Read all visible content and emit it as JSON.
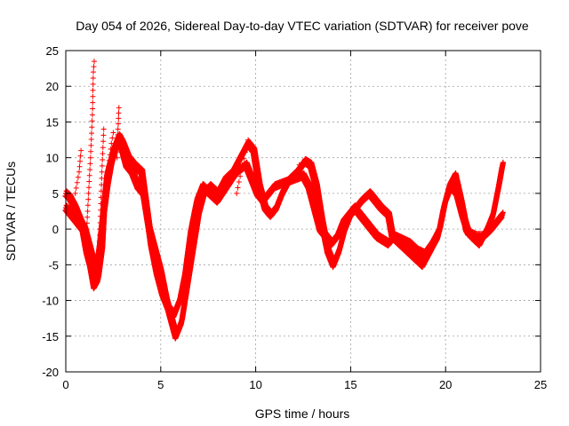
{
  "chart_data": {
    "type": "scatter",
    "title": "Day 054 of 2026, Sidereal Day-to-day VTEC variation (SDTVAR) for receiver pove",
    "xlabel": "GPS time / hours",
    "ylabel": "SDTVAR / TECUs",
    "xlim": [
      0,
      25
    ],
    "ylim": [
      -20,
      25
    ],
    "xticks": [
      0,
      5,
      10,
      15,
      20,
      25
    ],
    "yticks": [
      -20,
      -15,
      -10,
      -5,
      0,
      5,
      10,
      15,
      20,
      25
    ],
    "grid": true,
    "marker": "+",
    "series": [
      {
        "name": "SDTVAR",
        "color": "#ff0000",
        "tracks": [
          [
            [
              0,
              3
            ],
            [
              0.3,
              2
            ],
            [
              0.6,
              1
            ],
            [
              0.9,
              0
            ],
            [
              1.1,
              -3
            ],
            [
              1.3,
              -5
            ],
            [
              1.5,
              -8
            ],
            [
              1.7,
              -7
            ],
            [
              1.9,
              -3
            ],
            [
              2.0,
              2
            ],
            [
              2.2,
              6
            ],
            [
              2.4,
              9
            ],
            [
              2.6,
              11
            ],
            [
              2.8,
              12.5
            ],
            [
              3.0,
              11
            ],
            [
              3.2,
              9
            ],
            [
              3.5,
              8
            ],
            [
              3.8,
              6
            ],
            [
              4.1,
              5
            ],
            [
              4.4,
              0
            ],
            [
              4.7,
              -3
            ],
            [
              5.0,
              -6
            ],
            [
              5.3,
              -10
            ],
            [
              5.6,
              -13
            ],
            [
              5.8,
              -15
            ],
            [
              6.1,
              -13
            ],
            [
              6.4,
              -8
            ],
            [
              6.7,
              -3
            ],
            [
              7.0,
              2
            ],
            [
              7.3,
              5
            ],
            [
              7.6,
              6
            ],
            [
              8.0,
              5
            ],
            [
              8.4,
              7
            ],
            [
              8.8,
              8
            ],
            [
              9.2,
              10
            ],
            [
              9.6,
              12
            ],
            [
              9.9,
              11
            ],
            [
              10.2,
              6
            ],
            [
              10.5,
              3
            ],
            [
              10.8,
              2
            ],
            [
              11.1,
              3
            ],
            [
              11.4,
              5
            ],
            [
              11.8,
              7
            ],
            [
              12.2,
              8
            ],
            [
              12.6,
              9.5
            ],
            [
              12.9,
              9
            ],
            [
              13.2,
              6
            ],
            [
              13.5,
              1
            ],
            [
              13.8,
              -3
            ],
            [
              14.1,
              -5
            ],
            [
              14.4,
              -3
            ],
            [
              14.7,
              0
            ],
            [
              15.0,
              2
            ],
            [
              15.3,
              3
            ],
            [
              15.6,
              4
            ],
            [
              16.0,
              5
            ],
            [
              16.3,
              4
            ],
            [
              16.6,
              3
            ],
            [
              17.0,
              2
            ],
            [
              17.2,
              -1
            ],
            [
              17.6,
              -2
            ],
            [
              18.0,
              -3
            ],
            [
              18.4,
              -4
            ],
            [
              18.8,
              -5
            ],
            [
              19.2,
              -3
            ],
            [
              19.6,
              -1
            ],
            [
              19.9,
              3
            ],
            [
              20.2,
              6
            ],
            [
              20.5,
              7.5
            ],
            [
              20.8,
              4
            ],
            [
              21.1,
              0
            ],
            [
              21.4,
              -1
            ],
            [
              21.8,
              -2
            ],
            [
              22.2,
              0
            ],
            [
              22.5,
              2
            ],
            [
              22.8,
              6
            ],
            [
              23.0,
              9
            ]
          ],
          [
            [
              0,
              5
            ],
            [
              0.2,
              4.5
            ],
            [
              0.5,
              3
            ],
            [
              0.8,
              1
            ],
            [
              1.0,
              0
            ],
            [
              1.2,
              -2
            ],
            [
              1.4,
              -4
            ],
            [
              1.6,
              -6
            ],
            [
              1.8,
              -2
            ],
            [
              2.0,
              3
            ],
            [
              2.2,
              8
            ],
            [
              2.5,
              11
            ],
            [
              2.8,
              13
            ],
            [
              3.0,
              12
            ],
            [
              3.3,
              10
            ],
            [
              3.6,
              9
            ],
            [
              4.0,
              8
            ],
            [
              4.2,
              4
            ],
            [
              4.5,
              -2
            ],
            [
              4.8,
              -6
            ],
            [
              5.1,
              -9
            ],
            [
              5.4,
              -11
            ],
            [
              5.7,
              -12
            ],
            [
              6.0,
              -10
            ],
            [
              6.3,
              -6
            ],
            [
              6.6,
              0
            ],
            [
              6.9,
              4
            ],
            [
              7.2,
              6
            ],
            [
              7.6,
              5
            ],
            [
              8.0,
              4
            ],
            [
              8.5,
              6
            ],
            [
              9.0,
              8
            ],
            [
              9.5,
              9
            ],
            [
              9.8,
              7
            ],
            [
              10.1,
              5
            ],
            [
              10.4,
              4
            ],
            [
              10.7,
              5
            ],
            [
              11.0,
              6
            ],
            [
              11.5,
              6.5
            ],
            [
              12.0,
              7
            ],
            [
              12.5,
              7.5
            ],
            [
              12.8,
              6
            ],
            [
              13.1,
              3
            ],
            [
              13.4,
              0
            ],
            [
              13.7,
              -1
            ],
            [
              14.0,
              -2
            ],
            [
              14.3,
              -1
            ],
            [
              14.6,
              1
            ],
            [
              14.9,
              2
            ],
            [
              15.2,
              3
            ],
            [
              15.5,
              2
            ],
            [
              15.8,
              1
            ],
            [
              16.1,
              0
            ],
            [
              16.4,
              -1
            ],
            [
              16.7,
              -1.5
            ],
            [
              17.0,
              -2
            ],
            [
              17.3,
              -1
            ],
            [
              17.7,
              -1.5
            ],
            [
              18.1,
              -2
            ],
            [
              18.5,
              -3
            ],
            [
              18.9,
              -3.5
            ],
            [
              19.3,
              -2
            ],
            [
              19.7,
              0
            ],
            [
              20.0,
              4
            ],
            [
              20.3,
              6
            ],
            [
              20.6,
              5
            ],
            [
              20.9,
              2
            ],
            [
              21.2,
              -0.5
            ],
            [
              21.6,
              -1
            ],
            [
              22.0,
              -1
            ],
            [
              22.4,
              0
            ],
            [
              22.7,
              1
            ],
            [
              23.0,
              2
            ]
          ]
        ],
        "spikes": [
          [
            [
              0.5,
              5
            ],
            [
              0.7,
              8
            ],
            [
              0.8,
              11
            ]
          ],
          [
            [
              1.1,
              0
            ],
            [
              1.2,
              5
            ],
            [
              1.3,
              10
            ],
            [
              1.4,
              16
            ],
            [
              1.45,
              22
            ],
            [
              1.5,
              23.5
            ]
          ],
          [
            [
              1.7,
              -6
            ],
            [
              1.8,
              0
            ],
            [
              1.9,
              8
            ],
            [
              2.0,
              14
            ]
          ],
          [
            [
              2.2,
              8
            ],
            [
              2.4,
              12
            ],
            [
              2.5,
              13.5
            ]
          ],
          [
            [
              2.7,
              10
            ],
            [
              2.75,
              14
            ],
            [
              2.8,
              17
            ]
          ],
          [
            [
              9.0,
              5
            ],
            [
              9.3,
              9
            ],
            [
              9.6,
              12.5
            ]
          ],
          [
            [
              12.3,
              9
            ],
            [
              12.8,
              9.5
            ]
          ]
        ]
      }
    ]
  }
}
